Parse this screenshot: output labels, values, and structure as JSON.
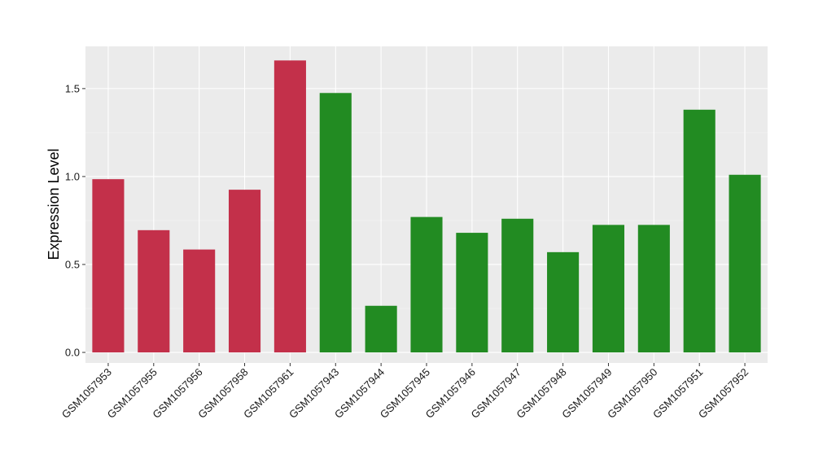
{
  "chart_data": {
    "type": "bar",
    "title": "",
    "xlabel": "",
    "ylabel": "Expression Level",
    "ylim": [
      -0.06,
      1.74
    ],
    "yticks": [
      0.0,
      0.5,
      1.0,
      1.5
    ],
    "ytick_labels": [
      "0.0",
      "0.5",
      "1.0",
      "1.5"
    ],
    "grid": true,
    "legend": "none",
    "background": "#ebebeb",
    "categories": [
      "GSM1057953",
      "GSM1057955",
      "GSM1057956",
      "GSM1057958",
      "GSM1057961",
      "GSM1057943",
      "GSM1057944",
      "GSM1057945",
      "GSM1057946",
      "GSM1057947",
      "GSM1057948",
      "GSM1057949",
      "GSM1057950",
      "GSM1057951",
      "GSM1057952"
    ],
    "values": [
      0.985,
      0.695,
      0.585,
      0.925,
      1.66,
      1.475,
      0.265,
      0.77,
      0.68,
      0.76,
      0.57,
      0.725,
      0.725,
      1.38,
      1.01
    ],
    "group_colors": [
      "#c3304a",
      "#c3304a",
      "#c3304a",
      "#c3304a",
      "#c3304a",
      "#228b22",
      "#228b22",
      "#228b22",
      "#228b22",
      "#228b22",
      "#228b22",
      "#228b22",
      "#228b22",
      "#228b22",
      "#228b22"
    ]
  }
}
